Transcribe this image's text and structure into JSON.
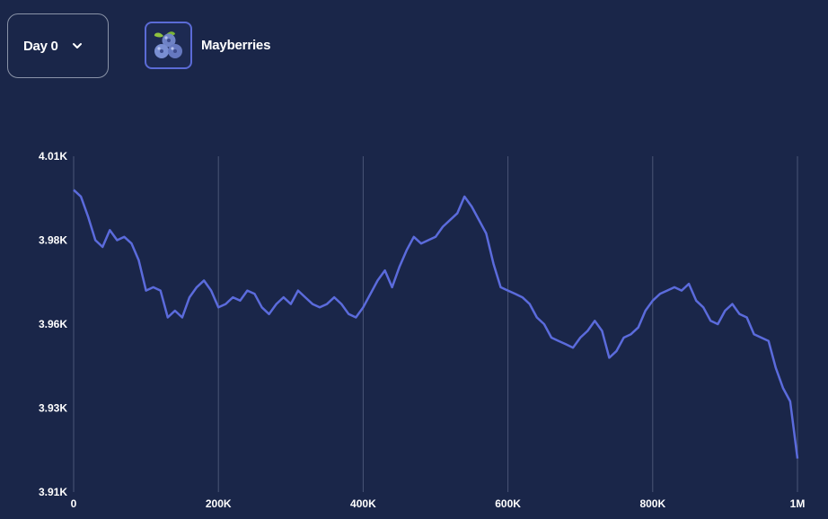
{
  "header": {
    "day_label": "Day 0",
    "product_name": "Mayberries",
    "product_icon": "blueberry-cluster-icon"
  },
  "colors": {
    "background": "#1a2649",
    "line": "#5b6bdc",
    "grid": "#4a5676",
    "text": "#ffffff"
  },
  "chart_data": {
    "type": "line",
    "title": "",
    "xlabel": "",
    "ylabel": "",
    "xlim": [
      0,
      1000000
    ],
    "ylim": [
      3910,
      4010
    ],
    "x_ticks": [
      0,
      200000,
      400000,
      600000,
      800000,
      1000000
    ],
    "x_tick_labels": [
      "0",
      "200K",
      "400K",
      "600K",
      "800K",
      "1M"
    ],
    "y_ticks": [
      3910,
      3935,
      3960,
      3985,
      4010
    ],
    "y_tick_labels": [
      "3.91K",
      "3.93K",
      "3.96K",
      "3.98K",
      "4.01K"
    ],
    "grid": "vertical",
    "series": [
      {
        "x": [
          0,
          10000,
          20000,
          30000,
          40000,
          50000,
          60000,
          70000,
          80000,
          90000,
          100000,
          110000,
          120000,
          130000,
          140000,
          150000,
          160000,
          170000,
          180000,
          190000,
          200000,
          210000,
          220000,
          230000,
          240000,
          250000,
          260000,
          270000,
          280000,
          290000,
          300000,
          310000,
          320000,
          330000,
          340000,
          350000,
          360000,
          370000,
          380000,
          390000,
          400000,
          410000,
          420000,
          430000,
          440000,
          450000,
          460000,
          470000,
          480000,
          490000,
          500000,
          510000,
          520000,
          530000,
          540000,
          550000,
          560000,
          570000,
          580000,
          590000,
          600000,
          610000,
          620000,
          630000,
          640000,
          650000,
          660000,
          670000,
          680000,
          690000,
          700000,
          710000,
          720000,
          730000,
          740000,
          750000,
          760000,
          770000,
          780000,
          790000,
          800000,
          810000,
          820000,
          830000,
          840000,
          850000,
          860000,
          870000,
          880000,
          890000,
          900000,
          910000,
          920000,
          930000,
          940000,
          950000,
          960000,
          970000,
          980000,
          990000,
          1000000
        ],
        "y": [
          4000,
          3998,
          3992,
          3985,
          3983,
          3988,
          3985,
          3986,
          3984,
          3979,
          3970,
          3971,
          3970,
          3962,
          3964,
          3962,
          3968,
          3971,
          3973,
          3970,
          3965,
          3966,
          3968,
          3967,
          3970,
          3969,
          3965,
          3963,
          3966,
          3968,
          3966,
          3970,
          3968,
          3966,
          3965,
          3966,
          3968,
          3966,
          3963,
          3962,
          3965,
          3969,
          3973,
          3976,
          3971,
          3977,
          3982,
          3986,
          3984,
          3985,
          3986,
          3989,
          3991,
          3993,
          3998,
          3995,
          3991,
          3987,
          3978,
          3971,
          3970,
          3969,
          3968,
          3966,
          3962,
          3960,
          3956,
          3955,
          3954,
          3953,
          3956,
          3958,
          3961,
          3958,
          3950,
          3952,
          3956,
          3957,
          3959,
          3964,
          3967,
          3969,
          3970,
          3971,
          3970,
          3972,
          3967,
          3965,
          3961,
          3960,
          3964,
          3966,
          3963,
          3962,
          3957,
          3956,
          3955,
          3947,
          3941,
          3937,
          3920
        ]
      }
    ]
  }
}
